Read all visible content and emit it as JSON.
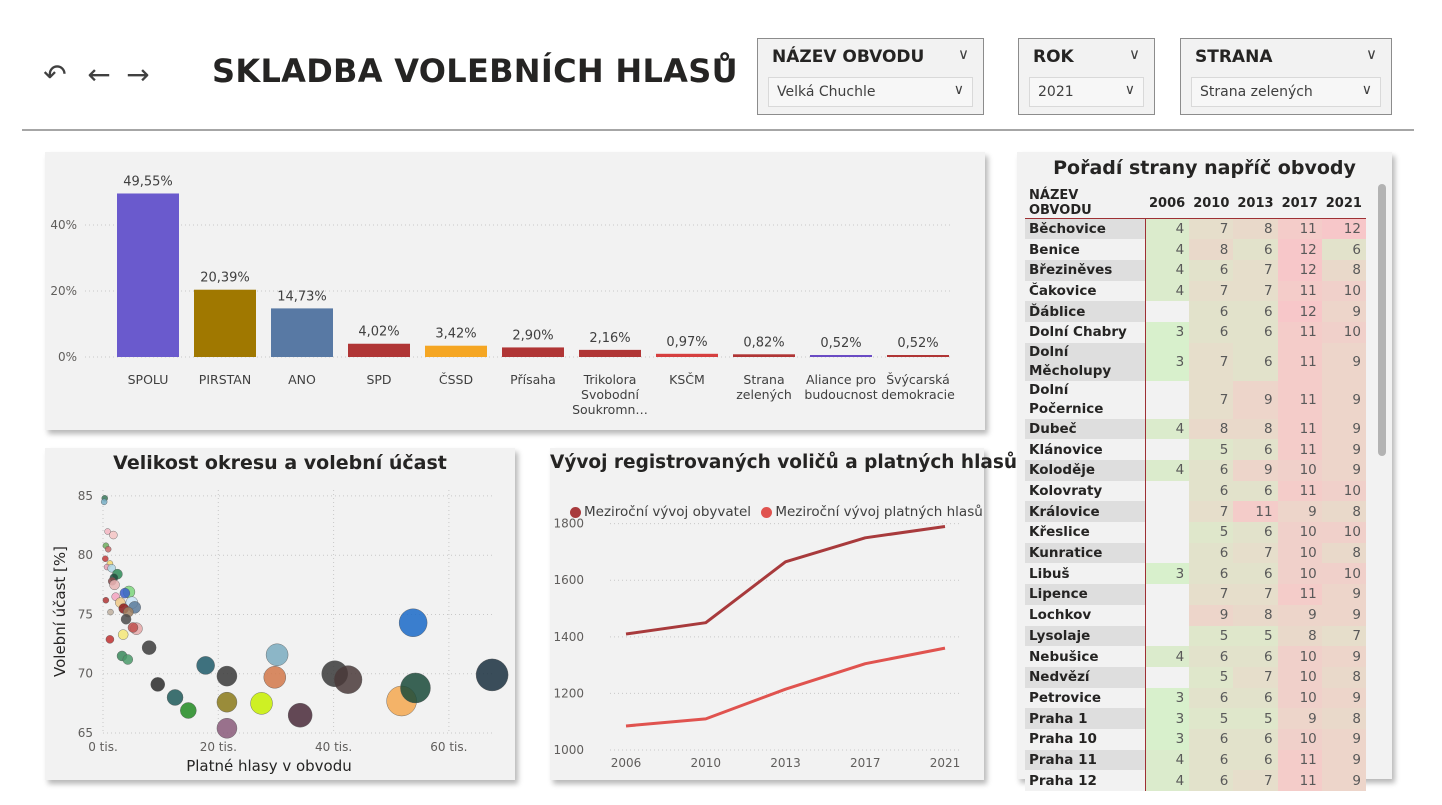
{
  "nav": {
    "back_icon": "undo-arrow-icon",
    "prev_icon": "arrow-left-icon",
    "next_icon": "arrow-right-icon"
  },
  "page_title": "SKLADBA VOLEBNÍCH HLASŮ",
  "slicers": {
    "district": {
      "label": "NÁZEV OBVODU",
      "value": "Velká Chuchle"
    },
    "year": {
      "label": "ROK",
      "value": "2021"
    },
    "party": {
      "label": "STRANA",
      "value": "Strana zelených"
    }
  },
  "colors": {
    "card_bg": "#f2f2f2",
    "accent_red": "#9e3034",
    "line_dark": "#a83a3c",
    "line_light": "#e0534f",
    "rank_green": "#d8f0cc",
    "rank_red": "#f7c7c9"
  },
  "bar_chart": {
    "chart_data": {
      "type": "bar",
      "categories": [
        "SPOLU",
        "PIRSTAN",
        "ANO",
        "SPD",
        "ČSSD",
        "Přísaha",
        "Trikolora Svobodní Soukromn…",
        "KSČM",
        "Strana zelených",
        "Aliance pro budoucnost",
        "Švýcarská demokracie"
      ],
      "category_lines": [
        [
          "SPOLU"
        ],
        [
          "PIRSTAN"
        ],
        [
          "ANO"
        ],
        [
          "SPD"
        ],
        [
          "ČSSD"
        ],
        [
          "Přísaha"
        ],
        [
          "Trikolora",
          "Svobodní",
          "Soukromn…"
        ],
        [
          "KSČM"
        ],
        [
          "Strana",
          "zelených"
        ],
        [
          "Aliance pro",
          "budoucnost"
        ],
        [
          "Švýcarská",
          "demokracie"
        ]
      ],
      "values": [
        49.55,
        20.39,
        14.73,
        4.02,
        3.42,
        2.9,
        2.16,
        0.97,
        0.82,
        0.52,
        0.52
      ],
      "value_labels": [
        "49,55%",
        "20,39%",
        "14,73%",
        "4,02%",
        "3,42%",
        "2,90%",
        "2,16%",
        "0,97%",
        "0,82%",
        "0,52%",
        "0,52%"
      ],
      "colors": [
        "#6a5acd",
        "#a07800",
        "#5879a4",
        "#b03535",
        "#f5a623",
        "#b03535",
        "#b03535",
        "#d63f3f",
        "#b03535",
        "#6a4bc4",
        "#b03535"
      ],
      "yticks": [
        "0%",
        "20%",
        "40%"
      ],
      "ytick_values": [
        0,
        20,
        40
      ],
      "ylim": [
        0,
        50
      ],
      "grid": true
    }
  },
  "scatter_chart": {
    "title": "Velikost okresu a volební účast",
    "chart_data": {
      "type": "scatter",
      "xlabel": "Platné hlasy v obvodu",
      "ylabel": "Volební účast [%]",
      "xticks": [
        "0 tis.",
        "20 tis.",
        "40 tis.",
        "60 tis."
      ],
      "xtick_values": [
        0,
        20,
        40,
        60
      ],
      "yticks": [
        "65",
        "70",
        "75",
        "80",
        "85"
      ],
      "ytick_values": [
        65,
        70,
        75,
        80,
        85
      ],
      "xlim": [
        0,
        68
      ],
      "ylim": [
        65,
        85.5
      ],
      "grid": true,
      "points": [
        {
          "x": 0.3,
          "y": 84.8,
          "s": 3,
          "c": "#3a7a5c"
        },
        {
          "x": 0.2,
          "y": 84.5,
          "s": 3,
          "c": "#7ab0c8"
        },
        {
          "x": 0.8,
          "y": 82.0,
          "s": 3,
          "c": "#f4b6c2"
        },
        {
          "x": 1.8,
          "y": 81.7,
          "s": 4,
          "c": "#f4c4c4"
        },
        {
          "x": 0.5,
          "y": 80.8,
          "s": 3,
          "c": "#6fae5f"
        },
        {
          "x": 0.9,
          "y": 80.5,
          "s": 3,
          "c": "#c96a6a"
        },
        {
          "x": 0.4,
          "y": 79.7,
          "s": 3,
          "c": "#c23a3a"
        },
        {
          "x": 1.2,
          "y": 79.3,
          "s": 3,
          "c": "#f5d76e"
        },
        {
          "x": 0.7,
          "y": 79.0,
          "s": 3,
          "c": "#e8a0b4"
        },
        {
          "x": 1.5,
          "y": 78.9,
          "s": 4,
          "c": "#b0d8e8"
        },
        {
          "x": 2.5,
          "y": 78.4,
          "s": 5,
          "c": "#2e8b57"
        },
        {
          "x": 1.9,
          "y": 78.1,
          "s": 4,
          "c": "#1f4e3d"
        },
        {
          "x": 1.6,
          "y": 77.8,
          "s": 4,
          "c": "#8b4a4a"
        },
        {
          "x": 2.0,
          "y": 77.5,
          "s": 5,
          "c": "#e8b4b4"
        },
        {
          "x": 4.5,
          "y": 76.9,
          "s": 6,
          "c": "#7cd67c"
        },
        {
          "x": 3.8,
          "y": 76.8,
          "s": 5,
          "c": "#3a5fcd"
        },
        {
          "x": 2.2,
          "y": 76.5,
          "s": 4,
          "c": "#f4a3c0"
        },
        {
          "x": 0.5,
          "y": 76.2,
          "s": 3,
          "c": "#b03535"
        },
        {
          "x": 5.0,
          "y": 76.0,
          "s": 6,
          "c": "#c9e4f8"
        },
        {
          "x": 3.0,
          "y": 76.0,
          "s": 5,
          "c": "#f0c987"
        },
        {
          "x": 5.5,
          "y": 75.6,
          "s": 6,
          "c": "#5a7a9a"
        },
        {
          "x": 3.6,
          "y": 75.5,
          "s": 5,
          "c": "#8b1a1a"
        },
        {
          "x": 4.4,
          "y": 75.2,
          "s": 5,
          "c": "#a08060"
        },
        {
          "x": 1.3,
          "y": 75.2,
          "s": 3,
          "c": "#c0b0a0"
        },
        {
          "x": 4.0,
          "y": 74.6,
          "s": 5,
          "c": "#4a4a4a"
        },
        {
          "x": 5.8,
          "y": 73.8,
          "s": 6,
          "c": "#e8a8a8"
        },
        {
          "x": 5.2,
          "y": 73.9,
          "s": 5,
          "c": "#c0504d"
        },
        {
          "x": 3.5,
          "y": 73.3,
          "s": 5,
          "c": "#f5e878"
        },
        {
          "x": 1.2,
          "y": 72.9,
          "s": 4,
          "c": "#c03030"
        },
        {
          "x": 8.0,
          "y": 72.2,
          "s": 7,
          "c": "#3c3c3c"
        },
        {
          "x": 3.3,
          "y": 71.5,
          "s": 5,
          "c": "#3a8a5c"
        },
        {
          "x": 4.3,
          "y": 71.2,
          "s": 5,
          "c": "#4a9a6a"
        },
        {
          "x": 9.5,
          "y": 69.1,
          "s": 7,
          "c": "#2a2a2a"
        },
        {
          "x": 12.5,
          "y": 68.0,
          "s": 8,
          "c": "#1f5a5a"
        },
        {
          "x": 14.8,
          "y": 66.9,
          "s": 8,
          "c": "#228b22"
        },
        {
          "x": 17.8,
          "y": 70.7,
          "s": 9,
          "c": "#1e5a6a"
        },
        {
          "x": 21.5,
          "y": 69.8,
          "s": 10,
          "c": "#3a3a3a"
        },
        {
          "x": 21.5,
          "y": 67.6,
          "s": 10,
          "c": "#8b7a1a"
        },
        {
          "x": 21.5,
          "y": 65.4,
          "s": 10,
          "c": "#8a5a7a"
        },
        {
          "x": 27.5,
          "y": 67.5,
          "s": 11,
          "c": "#c8f000"
        },
        {
          "x": 30.2,
          "y": 71.6,
          "s": 11,
          "c": "#7aabc0"
        },
        {
          "x": 29.8,
          "y": 69.7,
          "s": 11,
          "c": "#d2784a"
        },
        {
          "x": 34.2,
          "y": 66.5,
          "s": 12,
          "c": "#4a2a3a"
        },
        {
          "x": 40.2,
          "y": 70.0,
          "s": 13,
          "c": "#3a3a3a"
        },
        {
          "x": 42.5,
          "y": 69.5,
          "s": 14,
          "c": "#4a3a3a"
        },
        {
          "x": 53.8,
          "y": 74.3,
          "s": 14,
          "c": "#1a6ac8"
        },
        {
          "x": 51.8,
          "y": 67.7,
          "s": 15,
          "c": "#f5a850"
        },
        {
          "x": 54.2,
          "y": 68.8,
          "s": 15,
          "c": "#1a4a3a"
        },
        {
          "x": 67.5,
          "y": 69.9,
          "s": 16,
          "c": "#1a3040"
        }
      ]
    }
  },
  "line_chart": {
    "title": "Vývoj registrovaných voličů a platných hlasů",
    "chart_data": {
      "type": "line",
      "x": [
        "2006",
        "2010",
        "2013",
        "2017",
        "2021"
      ],
      "series": [
        {
          "name": "Meziroční vývoj obyvatel",
          "color": "#a83a3c",
          "values": [
            1410,
            1450,
            1665,
            1750,
            1790
          ]
        },
        {
          "name": "Meziroční vývoj platných hlasů",
          "color": "#e0534f",
          "values": [
            1085,
            1110,
            1215,
            1305,
            1360
          ]
        }
      ],
      "yticks": [
        "1000",
        "1200",
        "1400",
        "1600",
        "1800"
      ],
      "ytick_values": [
        1000,
        1200,
        1400,
        1600,
        1800
      ],
      "ylim": [
        1000,
        1820
      ],
      "grid": true,
      "legend_position": "top-left"
    }
  },
  "rank_table": {
    "title": "Pořadí strany napříč obvody",
    "columns": [
      "NÁZEV OBVODU",
      "2006",
      "2010",
      "2013",
      "2017",
      "2021"
    ],
    "rows": [
      {
        "name": "Běchovice",
        "v": [
          "4",
          "7",
          "8",
          "11",
          "12"
        ]
      },
      {
        "name": "Benice",
        "v": [
          "4",
          "8",
          "6",
          "12",
          "6"
        ]
      },
      {
        "name": "Březiněves",
        "v": [
          "4",
          "6",
          "7",
          "12",
          "8"
        ]
      },
      {
        "name": "Čakovice",
        "v": [
          "4",
          "7",
          "7",
          "11",
          "10"
        ]
      },
      {
        "name": "Ďáblice",
        "v": [
          "",
          "6",
          "6",
          "12",
          "9"
        ]
      },
      {
        "name": "Dolní Chabry",
        "v": [
          "3",
          "6",
          "6",
          "11",
          "10"
        ]
      },
      {
        "name": "Dolní Měcholupy",
        "v": [
          "3",
          "7",
          "6",
          "11",
          "9"
        ]
      },
      {
        "name": "Dolní Počernice",
        "v": [
          "",
          "7",
          "9",
          "11",
          "9"
        ]
      },
      {
        "name": "Dubeč",
        "v": [
          "4",
          "8",
          "8",
          "11",
          "9"
        ]
      },
      {
        "name": "Klánovice",
        "v": [
          "",
          "5",
          "6",
          "11",
          "9"
        ]
      },
      {
        "name": "Koloděje",
        "v": [
          "4",
          "6",
          "9",
          "10",
          "9"
        ]
      },
      {
        "name": "Kolovraty",
        "v": [
          "",
          "6",
          "6",
          "11",
          "10"
        ]
      },
      {
        "name": "Královice",
        "v": [
          "",
          "7",
          "11",
          "9",
          "8"
        ]
      },
      {
        "name": "Křeslice",
        "v": [
          "",
          "5",
          "6",
          "10",
          "10"
        ]
      },
      {
        "name": "Kunratice",
        "v": [
          "",
          "6",
          "7",
          "10",
          "8"
        ]
      },
      {
        "name": "Libuš",
        "v": [
          "3",
          "6",
          "6",
          "10",
          "10"
        ]
      },
      {
        "name": "Lipence",
        "v": [
          "",
          "7",
          "7",
          "11",
          "9"
        ]
      },
      {
        "name": "Lochkov",
        "v": [
          "",
          "9",
          "8",
          "9",
          "9"
        ]
      },
      {
        "name": "Lysolaje",
        "v": [
          "",
          "5",
          "5",
          "8",
          "7"
        ]
      },
      {
        "name": "Nebušice",
        "v": [
          "4",
          "6",
          "6",
          "10",
          "9"
        ]
      },
      {
        "name": "Nedvězí",
        "v": [
          "",
          "5",
          "7",
          "10",
          "8"
        ]
      },
      {
        "name": "Petrovice",
        "v": [
          "3",
          "6",
          "6",
          "10",
          "9"
        ]
      },
      {
        "name": "Praha 1",
        "v": [
          "3",
          "5",
          "5",
          "9",
          "8"
        ]
      },
      {
        "name": "Praha 10",
        "v": [
          "3",
          "6",
          "6",
          "10",
          "9"
        ]
      },
      {
        "name": "Praha 11",
        "v": [
          "4",
          "6",
          "6",
          "11",
          "9"
        ]
      },
      {
        "name": "Praha 12",
        "v": [
          "4",
          "6",
          "7",
          "11",
          "9"
        ]
      }
    ]
  }
}
